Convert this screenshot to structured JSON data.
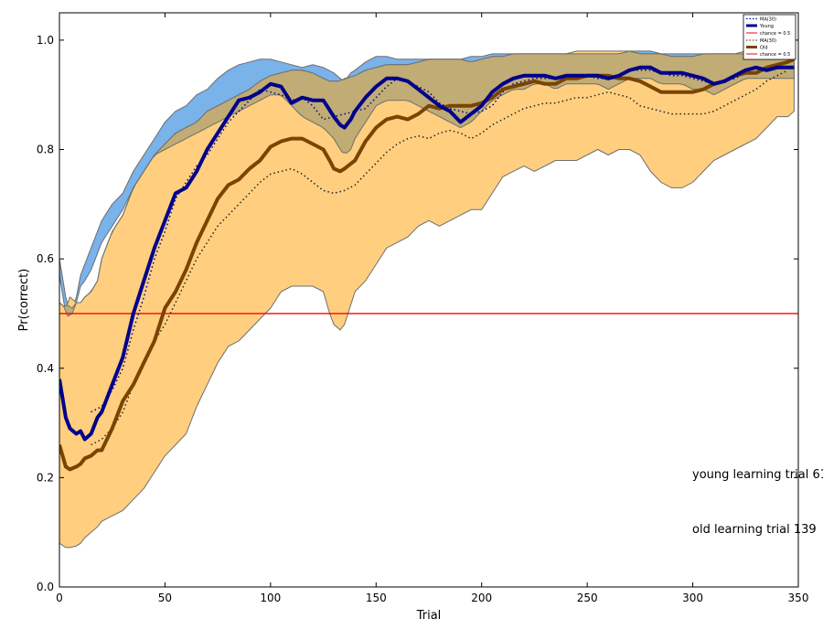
{
  "chart_data": {
    "type": "line",
    "xlabel": "Trial",
    "ylabel": "Pr(correct)",
    "xlim": [
      0,
      350
    ],
    "ylim": [
      0,
      1.05
    ],
    "xticks": [
      0,
      50,
      100,
      150,
      200,
      250,
      300,
      350
    ],
    "yticks": [
      0.0,
      0.2,
      0.4,
      0.6,
      0.8,
      1.0
    ],
    "ytick_labels": [
      "0.0",
      "0.2",
      "0.4",
      "0.6",
      "0.8",
      "1.0"
    ],
    "grid": false,
    "legend_position": "top-right",
    "chance_level": 0.5,
    "colors": {
      "young_line": "#00008b",
      "young_band": "#7ab2ea",
      "old_line": "#7a4400",
      "old_band": "#ffcf7f",
      "overlap_band": "#c0ac74",
      "band_edge": "#6e6e6e",
      "chance": "#ff0000",
      "ma_line": "#222222"
    },
    "legend": [
      {
        "label": "MA(30)",
        "style": "dotted"
      },
      {
        "label": "Young",
        "style": "young"
      },
      {
        "label": "chance = 0.5",
        "style": "chance"
      },
      {
        "label": "MA(30)",
        "style": "dotted"
      },
      {
        "label": "Old",
        "style": "old"
      },
      {
        "label": "chance = 0.5",
        "style": "chance"
      }
    ],
    "annotations": [
      {
        "text": "young learning trial  61"
      },
      {
        "text": "old learning trial  139"
      }
    ],
    "series": [
      {
        "name": "Young",
        "x": [
          0,
          3,
          5,
          8,
          10,
          12,
          15,
          18,
          20,
          25,
          30,
          35,
          40,
          45,
          50,
          55,
          60,
          65,
          70,
          75,
          80,
          85,
          90,
          95,
          100,
          105,
          110,
          115,
          120,
          125,
          130,
          133,
          135,
          138,
          140,
          145,
          150,
          155,
          160,
          165,
          170,
          175,
          180,
          185,
          190,
          195,
          200,
          205,
          210,
          215,
          220,
          225,
          230,
          235,
          240,
          245,
          250,
          255,
          260,
          265,
          270,
          275,
          280,
          285,
          290,
          295,
          300,
          305,
          310,
          315,
          320,
          325,
          330,
          335,
          340,
          345,
          348
        ],
        "y": [
          0.38,
          0.31,
          0.29,
          0.28,
          0.285,
          0.27,
          0.28,
          0.31,
          0.32,
          0.37,
          0.42,
          0.5,
          0.56,
          0.62,
          0.67,
          0.72,
          0.73,
          0.76,
          0.8,
          0.83,
          0.86,
          0.89,
          0.895,
          0.905,
          0.92,
          0.915,
          0.885,
          0.895,
          0.89,
          0.89,
          0.86,
          0.845,
          0.84,
          0.855,
          0.87,
          0.895,
          0.915,
          0.93,
          0.93,
          0.925,
          0.91,
          0.895,
          0.88,
          0.87,
          0.85,
          0.865,
          0.88,
          0.905,
          0.92,
          0.93,
          0.935,
          0.935,
          0.935,
          0.93,
          0.935,
          0.935,
          0.935,
          0.935,
          0.93,
          0.935,
          0.945,
          0.95,
          0.95,
          0.94,
          0.94,
          0.94,
          0.935,
          0.93,
          0.92,
          0.925,
          0.935,
          0.945,
          0.95,
          0.945,
          0.95,
          0.95,
          0.95
        ],
        "lower": [
          0.57,
          0.5,
          0.49,
          0.52,
          0.55,
          0.56,
          0.58,
          0.61,
          0.63,
          0.66,
          0.69,
          0.73,
          0.76,
          0.79,
          0.8,
          0.81,
          0.82,
          0.83,
          0.84,
          0.85,
          0.86,
          0.87,
          0.88,
          0.89,
          0.9,
          0.9,
          0.88,
          0.86,
          0.85,
          0.84,
          0.82,
          0.8,
          0.79,
          0.8,
          0.82,
          0.85,
          0.88,
          0.89,
          0.89,
          0.89,
          0.88,
          0.87,
          0.86,
          0.85,
          0.84,
          0.85,
          0.87,
          0.89,
          0.9,
          0.91,
          0.91,
          0.92,
          0.92,
          0.91,
          0.92,
          0.92,
          0.92,
          0.92,
          0.91,
          0.92,
          0.93,
          0.93,
          0.93,
          0.92,
          0.92,
          0.92,
          0.91,
          0.91,
          0.9,
          0.91,
          0.92,
          0.93,
          0.93,
          0.93,
          0.93,
          0.93,
          0.93
        ],
        "upper": [
          0.6,
          0.53,
          0.5,
          0.53,
          0.57,
          0.59,
          0.62,
          0.65,
          0.67,
          0.7,
          0.72,
          0.76,
          0.79,
          0.82,
          0.85,
          0.87,
          0.88,
          0.9,
          0.91,
          0.93,
          0.945,
          0.955,
          0.96,
          0.965,
          0.965,
          0.96,
          0.955,
          0.95,
          0.955,
          0.95,
          0.94,
          0.93,
          0.925,
          0.94,
          0.945,
          0.96,
          0.97,
          0.97,
          0.965,
          0.965,
          0.965,
          0.965,
          0.965,
          0.965,
          0.965,
          0.97,
          0.97,
          0.975,
          0.975,
          0.975,
          0.975,
          0.975,
          0.975,
          0.975,
          0.975,
          0.975,
          0.975,
          0.975,
          0.975,
          0.975,
          0.98,
          0.98,
          0.98,
          0.975,
          0.975,
          0.975,
          0.975,
          0.975,
          0.975,
          0.975,
          0.975,
          0.975,
          0.975,
          0.98,
          0.98,
          0.98,
          0.98
        ]
      },
      {
        "name": "MA(30)",
        "group": "Young",
        "x": [
          15,
          20,
          25,
          30,
          35,
          40,
          45,
          50,
          55,
          60,
          65,
          70,
          75,
          80,
          85,
          90,
          95,
          100,
          105,
          110,
          115,
          120,
          125,
          130,
          135,
          140,
          145,
          150,
          155,
          160,
          165,
          170,
          175,
          180,
          185,
          190,
          195,
          200,
          205,
          210,
          215,
          220,
          225,
          230,
          235,
          240,
          245,
          250,
          255,
          260,
          265,
          270,
          275,
          280,
          285,
          290,
          295,
          300,
          305,
          310,
          315,
          320,
          325,
          330
        ],
        "y": [
          0.32,
          0.33,
          0.36,
          0.4,
          0.47,
          0.53,
          0.6,
          0.65,
          0.71,
          0.74,
          0.77,
          0.79,
          0.82,
          0.85,
          0.87,
          0.89,
          0.91,
          0.905,
          0.9,
          0.89,
          0.895,
          0.88,
          0.855,
          0.86,
          0.865,
          0.87,
          0.875,
          0.895,
          0.915,
          0.93,
          0.925,
          0.915,
          0.905,
          0.885,
          0.875,
          0.87,
          0.865,
          0.87,
          0.88,
          0.905,
          0.92,
          0.925,
          0.93,
          0.93,
          0.93,
          0.93,
          0.93,
          0.935,
          0.93,
          0.93,
          0.935,
          0.945,
          0.945,
          0.945,
          0.94,
          0.935,
          0.935,
          0.93,
          0.925,
          0.92,
          0.925,
          0.93,
          0.94,
          0.94
        ]
      },
      {
        "name": "Old",
        "x": [
          0,
          3,
          5,
          8,
          10,
          12,
          15,
          18,
          20,
          25,
          30,
          35,
          40,
          45,
          50,
          55,
          60,
          65,
          70,
          75,
          80,
          85,
          90,
          95,
          100,
          105,
          110,
          115,
          120,
          125,
          128,
          130,
          133,
          135,
          140,
          145,
          150,
          155,
          160,
          165,
          170,
          175,
          180,
          185,
          190,
          195,
          200,
          205,
          210,
          215,
          220,
          225,
          230,
          235,
          240,
          245,
          250,
          255,
          260,
          265,
          270,
          275,
          280,
          285,
          290,
          295,
          300,
          305,
          310,
          315,
          320,
          325,
          330,
          335,
          340,
          345,
          348
        ],
        "y": [
          0.26,
          0.22,
          0.215,
          0.22,
          0.225,
          0.235,
          0.24,
          0.25,
          0.25,
          0.29,
          0.34,
          0.37,
          0.41,
          0.45,
          0.51,
          0.54,
          0.58,
          0.63,
          0.67,
          0.71,
          0.735,
          0.745,
          0.765,
          0.78,
          0.805,
          0.815,
          0.82,
          0.82,
          0.81,
          0.8,
          0.78,
          0.765,
          0.76,
          0.765,
          0.78,
          0.815,
          0.84,
          0.855,
          0.86,
          0.855,
          0.865,
          0.88,
          0.875,
          0.88,
          0.88,
          0.88,
          0.885,
          0.895,
          0.91,
          0.915,
          0.92,
          0.925,
          0.92,
          0.92,
          0.93,
          0.93,
          0.935,
          0.935,
          0.935,
          0.93,
          0.93,
          0.925,
          0.915,
          0.905,
          0.905,
          0.905,
          0.905,
          0.91,
          0.92,
          0.925,
          0.935,
          0.94,
          0.94,
          0.95,
          0.955,
          0.96,
          0.965
        ],
        "lower": [
          0.08,
          0.072,
          0.072,
          0.075,
          0.08,
          0.09,
          0.1,
          0.11,
          0.12,
          0.13,
          0.14,
          0.16,
          0.18,
          0.21,
          0.24,
          0.26,
          0.28,
          0.33,
          0.37,
          0.41,
          0.44,
          0.45,
          0.47,
          0.49,
          0.51,
          0.54,
          0.55,
          0.55,
          0.55,
          0.54,
          0.5,
          0.48,
          0.47,
          0.48,
          0.54,
          0.56,
          0.59,
          0.62,
          0.63,
          0.64,
          0.66,
          0.67,
          0.66,
          0.67,
          0.68,
          0.69,
          0.69,
          0.72,
          0.75,
          0.76,
          0.77,
          0.76,
          0.77,
          0.78,
          0.78,
          0.78,
          0.79,
          0.8,
          0.79,
          0.8,
          0.8,
          0.79,
          0.76,
          0.74,
          0.73,
          0.73,
          0.74,
          0.76,
          0.78,
          0.79,
          0.8,
          0.81,
          0.82,
          0.84,
          0.86,
          0.86,
          0.87
        ],
        "upper": [
          0.52,
          0.51,
          0.53,
          0.52,
          0.52,
          0.53,
          0.54,
          0.56,
          0.6,
          0.65,
          0.68,
          0.73,
          0.76,
          0.79,
          0.81,
          0.83,
          0.84,
          0.85,
          0.87,
          0.88,
          0.89,
          0.9,
          0.91,
          0.925,
          0.935,
          0.94,
          0.945,
          0.945,
          0.94,
          0.93,
          0.925,
          0.925,
          0.925,
          0.93,
          0.935,
          0.945,
          0.95,
          0.955,
          0.955,
          0.955,
          0.96,
          0.965,
          0.965,
          0.965,
          0.965,
          0.96,
          0.965,
          0.97,
          0.97,
          0.975,
          0.975,
          0.975,
          0.975,
          0.975,
          0.975,
          0.98,
          0.98,
          0.98,
          0.98,
          0.98,
          0.98,
          0.975,
          0.975,
          0.975,
          0.97,
          0.97,
          0.97,
          0.975,
          0.975,
          0.975,
          0.975,
          0.98,
          0.98,
          0.98,
          0.985,
          0.985,
          0.985
        ]
      },
      {
        "name": "MA(30)",
        "group": "Old",
        "x": [
          15,
          20,
          25,
          30,
          35,
          40,
          45,
          50,
          55,
          60,
          65,
          70,
          75,
          80,
          85,
          90,
          95,
          100,
          105,
          110,
          115,
          120,
          125,
          130,
          135,
          140,
          145,
          150,
          155,
          160,
          165,
          170,
          175,
          180,
          185,
          190,
          195,
          200,
          205,
          210,
          215,
          220,
          225,
          230,
          235,
          240,
          245,
          250,
          255,
          260,
          265,
          270,
          275,
          280,
          285,
          290,
          295,
          300,
          305,
          310,
          315,
          320,
          325,
          330,
          335,
          340,
          345
        ],
        "y": [
          0.26,
          0.27,
          0.29,
          0.32,
          0.37,
          0.41,
          0.45,
          0.48,
          0.52,
          0.56,
          0.6,
          0.63,
          0.66,
          0.68,
          0.7,
          0.72,
          0.74,
          0.755,
          0.76,
          0.765,
          0.755,
          0.74,
          0.725,
          0.72,
          0.725,
          0.735,
          0.755,
          0.775,
          0.795,
          0.81,
          0.82,
          0.825,
          0.82,
          0.83,
          0.835,
          0.83,
          0.82,
          0.83,
          0.845,
          0.855,
          0.865,
          0.875,
          0.88,
          0.885,
          0.885,
          0.89,
          0.895,
          0.895,
          0.9,
          0.905,
          0.9,
          0.895,
          0.88,
          0.875,
          0.87,
          0.865,
          0.865,
          0.865,
          0.865,
          0.87,
          0.88,
          0.89,
          0.9,
          0.91,
          0.925,
          0.935,
          0.945
        ]
      }
    ]
  }
}
